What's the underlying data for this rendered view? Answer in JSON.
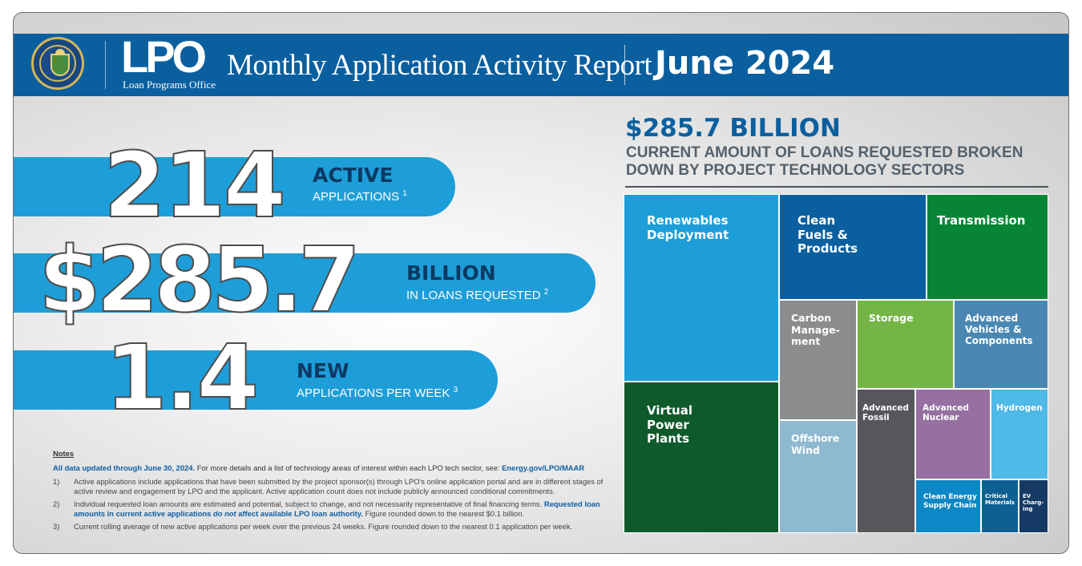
{
  "header": {
    "org_short": "LPO",
    "org_name": "Loan Programs Office",
    "title": "Monthly Application Activity Report",
    "period": "June 2024"
  },
  "stats": [
    {
      "number": "214",
      "label": "ACTIVE",
      "sub": "APPLICATIONS",
      "note_ref": "1"
    },
    {
      "number": "$285.7",
      "label": "BILLION",
      "sub": "IN LOANS REQUESTED",
      "note_ref": "2"
    },
    {
      "number": "1.4",
      "label": "NEW",
      "sub": "APPLICATIONS PER WEEK",
      "note_ref": "3"
    }
  ],
  "notes": {
    "title": "Notes",
    "intro_bold": "All data updated through June 30, 2024.",
    "intro_plain": " For more details and a list of technology areas of interest within each LPO tech sector, see: ",
    "intro_link": "Energy.gov/LPO/MAAR",
    "items": [
      {
        "num": "1)",
        "a": "Active applications include applications that have been submitted by the project sponsor(s) through LPO's online application portal and are in different stages of active review and engagement by LPO and the applicant. Active application count does not include publicly announced conditional commitments.",
        "b": "",
        "c": "",
        "d": "",
        "e": ""
      },
      {
        "num": "2)",
        "a": "Individual requested loan amounts are estimated and potential, subject to change, and not necessarily representative of final financing terms. ",
        "b": "Requested loan amounts in current active applications ",
        "c": "do not",
        "d": " affect available LPO loan authority.",
        "e": " Figure rounded down to the nearest $0.1 billion."
      },
      {
        "num": "3)",
        "a": "Current rolling average of new active applications per week over the previous 24 weeks. Figure rounded down to the nearest 0.1 application per week.",
        "b": "",
        "c": "",
        "d": "",
        "e": ""
      }
    ]
  },
  "summary": {
    "amount": "$285.7 BILLION",
    "description": "CURRENT AMOUNT OF LOANS REQUESTED BROKEN DOWN BY PROJECT TECHNOLOGY SECTORS"
  },
  "treemap": {
    "sectors": [
      {
        "name": "Renewables Deployment",
        "color": "#1e9ed8"
      },
      {
        "name": "Virtual Power Plants",
        "color": "#0f5a2b"
      },
      {
        "name": "Clean Fuels & Products",
        "color": "#0a5f9f"
      },
      {
        "name": "Transmission",
        "color": "#078434"
      },
      {
        "name": "Carbon Manage- ment",
        "color": "#8b8c8e"
      },
      {
        "name": "Storage",
        "color": "#74b546"
      },
      {
        "name": "Advanced Vehicles & Components",
        "color": "#4a87b3"
      },
      {
        "name": "Offshore Wind",
        "color": "#8fb9d0"
      },
      {
        "name": "Advanced Fossil",
        "color": "#55575b"
      },
      {
        "name": "Advanced Nuclear",
        "color": "#9570a0"
      },
      {
        "name": "Hydrogen",
        "color": "#4fb9e8"
      },
      {
        "name": "Clean Energy Supply Chain",
        "color": "#0e87c6"
      },
      {
        "name": "Critical Materials",
        "color": "#0f6092"
      },
      {
        "name": "EV Charg- ing",
        "color": "#163a66"
      }
    ]
  }
}
